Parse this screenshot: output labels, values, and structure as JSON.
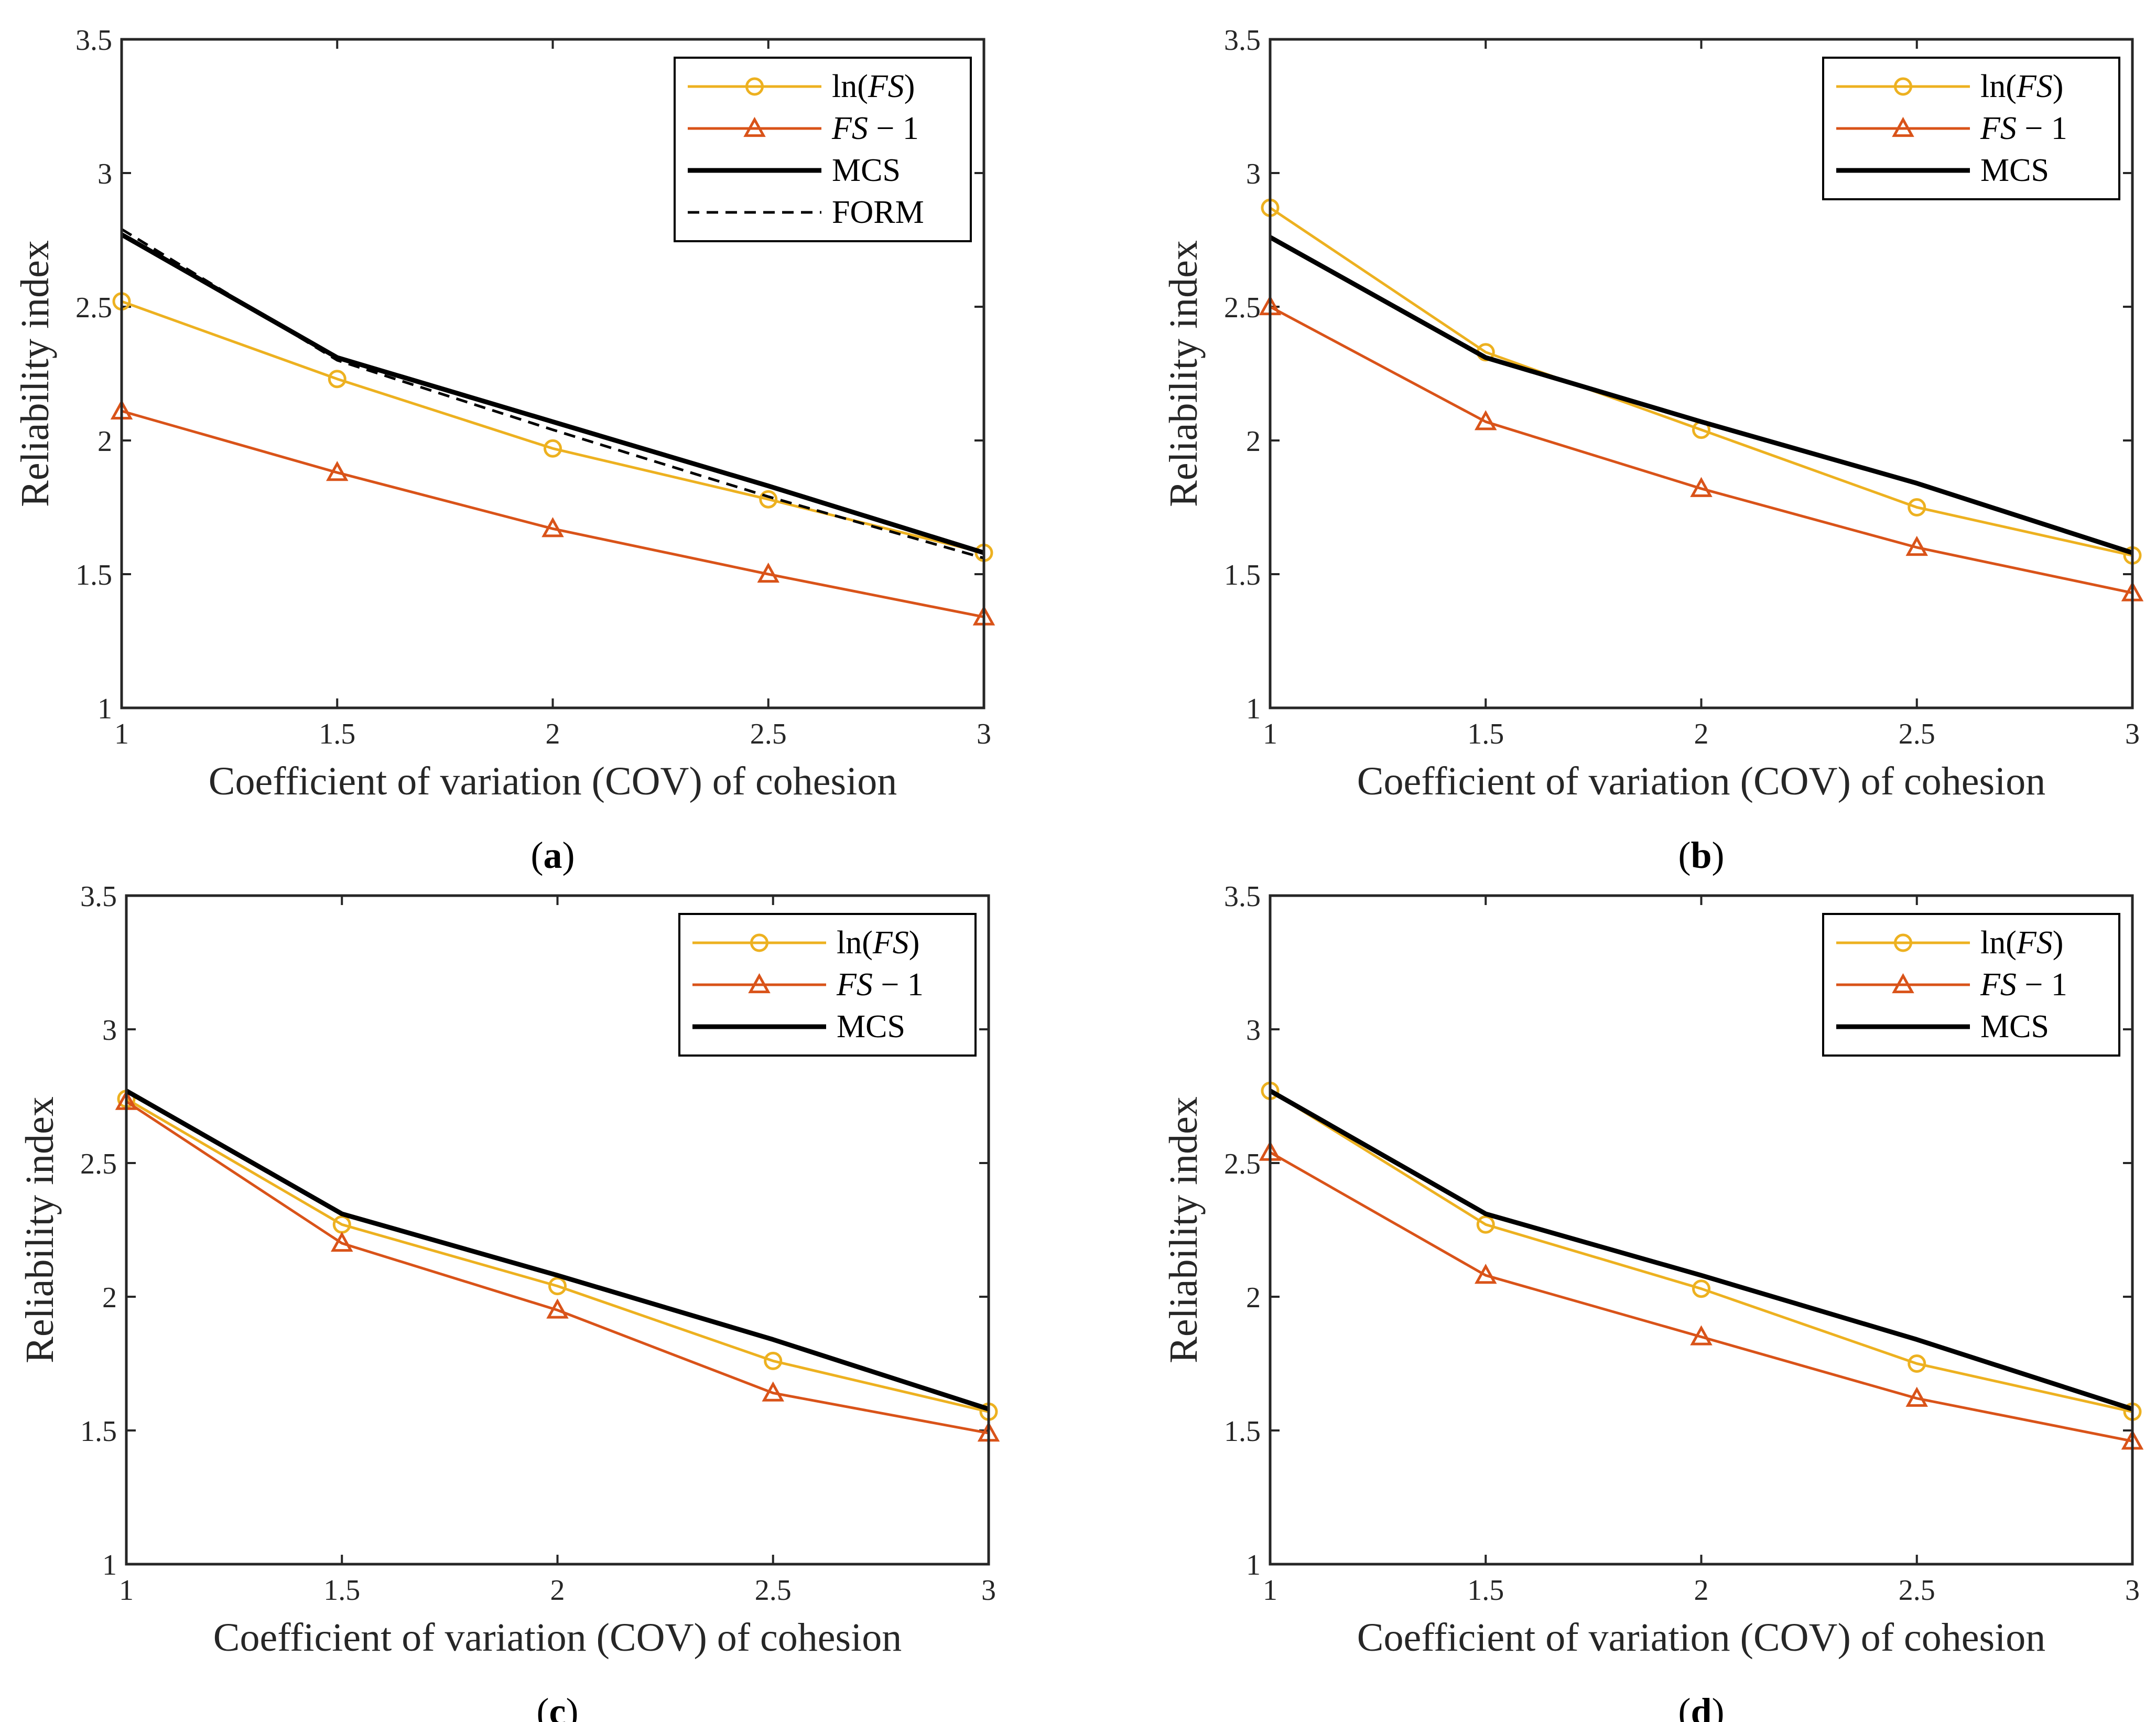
{
  "colors": {
    "ln_fs": "#EDB120",
    "fs_minus_1": "#D95319",
    "mcs": "#000000",
    "form": "#000000",
    "axes": "#262626"
  },
  "chart_data": [
    {
      "panel": "(a)",
      "panel_letter": "a",
      "type": "line",
      "xlabel": "Coefficient of variation (COV) of cohesion",
      "ylabel": "Reliability index",
      "xlim": [
        1,
        3
      ],
      "ylim": [
        1,
        3.5
      ],
      "xticks": [
        "1",
        "1.5",
        "2",
        "2.5",
        "3"
      ],
      "yticks": [
        "1",
        "1.5",
        "2",
        "2.5",
        "3",
        "3.5"
      ],
      "x": [
        1,
        1.5,
        2,
        2.5,
        3
      ],
      "legend_position": "top-right",
      "series": [
        {
          "key": "ln",
          "name": "ln(FS)",
          "legend_parts": [
            "ln(",
            "FS",
            ")"
          ],
          "marker": "circle",
          "values": [
            2.52,
            2.23,
            1.97,
            1.78,
            1.58
          ]
        },
        {
          "key": "fs1",
          "name": "FS − 1",
          "legend_parts": [
            "",
            "FS",
            " − 1"
          ],
          "marker": "triangle",
          "values": [
            2.11,
            1.88,
            1.67,
            1.5,
            1.34
          ]
        },
        {
          "key": "mcs",
          "name": "MCS",
          "legend_parts": [
            "MCS",
            "",
            ""
          ],
          "marker": "none",
          "values": [
            2.77,
            2.31,
            2.07,
            1.83,
            1.58
          ]
        },
        {
          "key": "form",
          "name": "FORM",
          "legend_parts": [
            "FORM",
            "",
            ""
          ],
          "marker": "none",
          "dashed": true,
          "values": [
            2.79,
            2.3,
            2.04,
            1.79,
            1.56
          ]
        }
      ]
    },
    {
      "panel": "(b)",
      "panel_letter": "b",
      "type": "line",
      "xlabel": "Coefficient of variation (COV) of cohesion",
      "ylabel": "Reliability index",
      "xlim": [
        1,
        3
      ],
      "ylim": [
        1,
        3.5
      ],
      "xticks": [
        "1",
        "1.5",
        "2",
        "2.5",
        "3"
      ],
      "yticks": [
        "1",
        "1.5",
        "2",
        "2.5",
        "3",
        "3.5"
      ],
      "x": [
        1,
        1.5,
        2,
        2.5,
        3
      ],
      "legend_position": "top-right",
      "series": [
        {
          "key": "ln",
          "name": "ln(FS)",
          "legend_parts": [
            "ln(",
            "FS",
            ")"
          ],
          "marker": "circle",
          "values": [
            2.87,
            2.33,
            2.04,
            1.75,
            1.57
          ]
        },
        {
          "key": "fs1",
          "name": "FS − 1",
          "legend_parts": [
            "",
            "FS",
            " − 1"
          ],
          "marker": "triangle",
          "values": [
            2.5,
            2.07,
            1.82,
            1.6,
            1.43
          ]
        },
        {
          "key": "mcs",
          "name": "MCS",
          "legend_parts": [
            "MCS",
            "",
            ""
          ],
          "marker": "none",
          "values": [
            2.76,
            2.31,
            2.07,
            1.84,
            1.58
          ]
        }
      ]
    },
    {
      "panel": "(c)",
      "panel_letter": "c",
      "type": "line",
      "xlabel": "Coefficient of variation (COV) of cohesion",
      "ylabel": "Reliability index",
      "xlim": [
        1,
        3
      ],
      "ylim": [
        1,
        3.5
      ],
      "xticks": [
        "1",
        "1.5",
        "2",
        "2.5",
        "3"
      ],
      "yticks": [
        "1",
        "1.5",
        "2",
        "2.5",
        "3",
        "3.5"
      ],
      "x": [
        1,
        1.5,
        2,
        2.5,
        3
      ],
      "legend_position": "top-right",
      "series": [
        {
          "key": "ln",
          "name": "ln(FS)",
          "legend_parts": [
            "ln(",
            "FS",
            ")"
          ],
          "marker": "circle",
          "values": [
            2.74,
            2.27,
            2.04,
            1.76,
            1.57
          ]
        },
        {
          "key": "fs1",
          "name": "FS − 1",
          "legend_parts": [
            "",
            "FS",
            " − 1"
          ],
          "marker": "triangle",
          "values": [
            2.73,
            2.2,
            1.95,
            1.64,
            1.49
          ]
        },
        {
          "key": "mcs",
          "name": "MCS",
          "legend_parts": [
            "MCS",
            "",
            ""
          ],
          "marker": "none",
          "values": [
            2.77,
            2.31,
            2.08,
            1.84,
            1.58
          ]
        }
      ]
    },
    {
      "panel": "(d)",
      "panel_letter": "d",
      "type": "line",
      "xlabel": "Coefficient of variation (COV) of cohesion",
      "ylabel": "Reliability index",
      "xlim": [
        1,
        3
      ],
      "ylim": [
        1,
        3.5
      ],
      "xticks": [
        "1",
        "1.5",
        "2",
        "2.5",
        "3"
      ],
      "yticks": [
        "1",
        "1.5",
        "2",
        "2.5",
        "3",
        "3.5"
      ],
      "x": [
        1,
        1.5,
        2,
        2.5,
        3
      ],
      "legend_position": "top-right",
      "series": [
        {
          "key": "ln",
          "name": "ln(FS)",
          "legend_parts": [
            "ln(",
            "FS",
            ")"
          ],
          "marker": "circle",
          "values": [
            2.77,
            2.27,
            2.03,
            1.75,
            1.57
          ]
        },
        {
          "key": "fs1",
          "name": "FS − 1",
          "legend_parts": [
            "",
            "FS",
            " − 1"
          ],
          "marker": "triangle",
          "values": [
            2.54,
            2.08,
            1.85,
            1.62,
            1.46
          ]
        },
        {
          "key": "mcs",
          "name": "MCS",
          "legend_parts": [
            "MCS",
            "",
            ""
          ],
          "marker": "none",
          "values": [
            2.77,
            2.31,
            2.08,
            1.84,
            1.58
          ]
        }
      ]
    }
  ]
}
